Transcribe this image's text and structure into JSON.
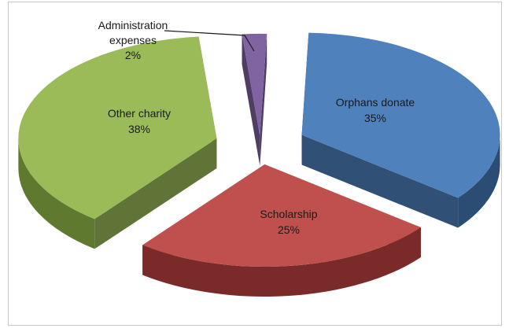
{
  "chart_data": {
    "type": "pie",
    "style": "3d-exploded",
    "slices": [
      {
        "label": "Orphans donate",
        "percent_label": "35%",
        "value": 35,
        "top_color": "#4f81bd",
        "side_color": "#2b4d74",
        "text_color": "#1a1a1a"
      },
      {
        "label": "Scholarship",
        "percent_label": "25%",
        "value": 25,
        "top_color": "#c0504d",
        "side_color": "#7a2b29",
        "text_color": "#1a1a1a"
      },
      {
        "label": "Other charity",
        "percent_label": "38%",
        "value": 38,
        "top_color": "#9bbb59",
        "side_color": "#5f7a2e",
        "text_color": "#1a1a1a"
      },
      {
        "label": "Administration expenses",
        "percent_label": "2%",
        "value": 2,
        "top_color": "#8064a2",
        "side_color": "#4d3a66",
        "text_color": "#1a1a1a",
        "label_lines": [
          "Administration",
          "expenses",
          "2%"
        ]
      }
    ]
  }
}
